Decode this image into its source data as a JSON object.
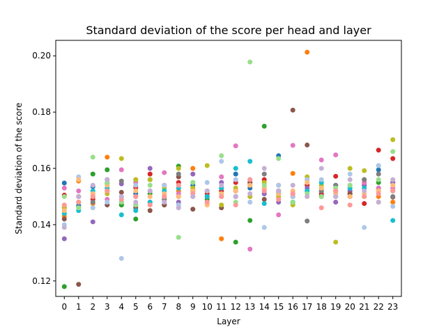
{
  "chart_data": {
    "type": "scatter",
    "title": "Standard deviation of the score per head and layer",
    "xlabel": "Layer",
    "ylabel": "Standard deviation of the score",
    "xlim": [
      -0.6,
      23.6
    ],
    "ylim": [
      0.1145,
      0.2055
    ],
    "x_ticks": [
      0,
      1,
      2,
      3,
      4,
      5,
      6,
      7,
      8,
      9,
      10,
      11,
      12,
      13,
      14,
      15,
      16,
      17,
      18,
      19,
      20,
      21,
      22,
      23
    ],
    "x_tick_labels": [
      "0",
      "1",
      "2",
      "3",
      "4",
      "5",
      "6",
      "7",
      "8",
      "9",
      "10",
      "11",
      "12",
      "13",
      "14",
      "15",
      "16",
      "17",
      "18",
      "19",
      "20",
      "21",
      "22",
      "23"
    ],
    "y_ticks": [
      0.12,
      0.14,
      0.16,
      0.18,
      0.2
    ],
    "y_tick_labels": [
      "0.12",
      "0.14",
      "0.16",
      "0.18",
      "0.20"
    ],
    "grid": false,
    "legend": "none",
    "colors": [
      "#1f77b4",
      "#ff7f0e",
      "#2ca02c",
      "#d62728",
      "#9467bd",
      "#8c564b",
      "#e377c2",
      "#7f7f7f",
      "#bcbd22",
      "#17becf",
      "#aec7e8",
      "#ffbb78",
      "#98df8a",
      "#ff9896",
      "#c5b0d5",
      "#c49c94",
      "#f7b6d2",
      "#c7c7c7",
      "#dbdb8d",
      "#9edae5"
    ],
    "series": [
      {
        "values": [
          0.1548,
          0.1468,
          0.1535,
          0.1548,
          0.148,
          0.151,
          0.156,
          0.147,
          0.15,
          0.154,
          0.152,
          0.151,
          0.158,
          0.153,
          0.151,
          0.1645,
          0.148,
          0.152,
          0.1505,
          0.154,
          0.151,
          0.154,
          0.1595,
          0.155
        ]
      },
      {
        "values": [
          0.143,
          0.1555,
          0.1475,
          0.164,
          0.147,
          0.156,
          0.148,
          0.15,
          0.152,
          0.16,
          0.148,
          0.135,
          0.152,
          0.15,
          0.153,
          0.154,
          0.1582,
          0.2013,
          0.15,
          0.152,
          0.15,
          0.155,
          0.15,
          0.148
        ]
      },
      {
        "values": [
          0.118,
          0.148,
          0.158,
          0.1595,
          0.147,
          0.142,
          0.151,
          0.149,
          0.1608,
          0.152,
          0.149,
          0.153,
          0.1338,
          0.1415,
          0.175,
          0.152,
          0.15,
          0.154,
          0.153,
          0.15,
          0.152,
          0.15,
          0.155,
          0.152
        ]
      },
      {
        "values": [
          0.1505,
          0.15,
          0.149,
          0.152,
          0.15,
          0.1532,
          0.158,
          0.154,
          0.155,
          0.152,
          0.151,
          0.152,
          0.155,
          0.154,
          0.156,
          0.152,
          0.15,
          0.154,
          0.151,
          0.1572,
          0.151,
          0.1475,
          0.1665,
          0.1635
        ]
      },
      {
        "values": [
          0.135,
          0.15,
          0.141,
          0.156,
          0.1545,
          0.15,
          0.16,
          0.151,
          0.148,
          0.158,
          0.15,
          0.155,
          0.152,
          0.155,
          0.151,
          0.148,
          0.151,
          0.153,
          0.15,
          0.148,
          0.152,
          0.154,
          0.152,
          0.155
        ]
      },
      {
        "values": [
          0.142,
          0.1188,
          0.15,
          0.147,
          0.1515,
          0.146,
          0.145,
          0.147,
          0.157,
          0.1455,
          0.15,
          0.146,
          0.15,
          0.155,
          0.149,
          0.151,
          0.1807,
          0.1683,
          0.152,
          0.152,
          0.151,
          0.156,
          0.153,
          0.1498
        ]
      },
      {
        "values": [
          0.153,
          0.152,
          0.151,
          0.149,
          0.1595,
          0.155,
          0.148,
          0.1585,
          0.151,
          0.15,
          0.148,
          0.157,
          0.168,
          0.1313,
          0.152,
          0.1435,
          0.1682,
          0.156,
          0.163,
          0.1648,
          0.154,
          0.155,
          0.153,
          0.153
        ]
      },
      {
        "values": [
          0.146,
          0.146,
          0.148,
          0.153,
          0.1555,
          0.147,
          0.152,
          0.149,
          0.158,
          0.15,
          0.15,
          0.15,
          0.15,
          0.156,
          0.158,
          0.15,
          0.148,
          0.1413,
          0.152,
          0.154,
          0.15,
          0.156,
          0.158,
          0.15
        ]
      },
      {
        "values": [
          0.146,
          0.148,
          0.15,
          0.151,
          0.1635,
          0.156,
          0.156,
          0.153,
          0.16,
          0.153,
          0.161,
          0.147,
          0.153,
          0.15,
          0.155,
          0.15,
          0.147,
          0.157,
          0.154,
          0.1338,
          0.16,
          0.1592,
          0.148,
          0.1702
        ]
      },
      {
        "values": [
          0.144,
          0.145,
          0.152,
          0.153,
          0.1435,
          0.145,
          0.148,
          0.152,
          0.153,
          0.155,
          0.15,
          0.153,
          0.16,
          0.1625,
          0.1475,
          0.1512,
          0.148,
          0.152,
          0.155,
          0.151,
          0.153,
          0.153,
          0.161,
          0.1415
        ]
      },
      {
        "values": [
          0.14,
          0.157,
          0.146,
          0.148,
          0.128,
          0.154,
          0.152,
          0.154,
          0.147,
          0.15,
          0.155,
          0.1625,
          0.156,
          0.148,
          0.139,
          0.154,
          0.15,
          0.156,
          0.156,
          0.15,
          0.158,
          0.139,
          0.161,
          0.1465
        ]
      },
      {
        "values": [
          0.145,
          0.156,
          0.151,
          0.154,
          0.15,
          0.152,
          0.15,
          0.151,
          0.15,
          0.152,
          0.147,
          0.151,
          0.152,
          0.154,
          0.153,
          0.151,
          0.152,
          0.155,
          0.153,
          0.151,
          0.15,
          0.151,
          0.152,
          0.154
        ]
      },
      {
        "values": [
          0.15,
          0.146,
          0.164,
          0.155,
          0.148,
          0.147,
          0.154,
          0.15,
          0.1355,
          0.155,
          0.152,
          0.1645,
          0.148,
          0.1978,
          0.154,
          0.1635,
          0.148,
          0.151,
          0.15,
          0.153,
          0.154,
          0.15,
          0.156,
          0.166
        ]
      },
      {
        "values": [
          0.147,
          0.148,
          0.15,
          0.152,
          0.149,
          0.15,
          0.147,
          0.15,
          0.154,
          0.151,
          0.148,
          0.15,
          0.147,
          0.156,
          0.152,
          0.149,
          0.151,
          0.15,
          0.146,
          0.152,
          0.147,
          0.15,
          0.151,
          0.152
        ]
      },
      {
        "values": [
          0.139,
          0.15,
          0.154,
          0.156,
          0.15,
          0.148,
          0.152,
          0.148,
          0.146,
          0.15,
          0.152,
          0.154,
          0.15,
          0.151,
          0.16,
          0.152,
          0.154,
          0.15,
          0.16,
          0.15,
          0.156,
          0.152,
          0.148,
          0.156
        ]
      }
    ]
  }
}
